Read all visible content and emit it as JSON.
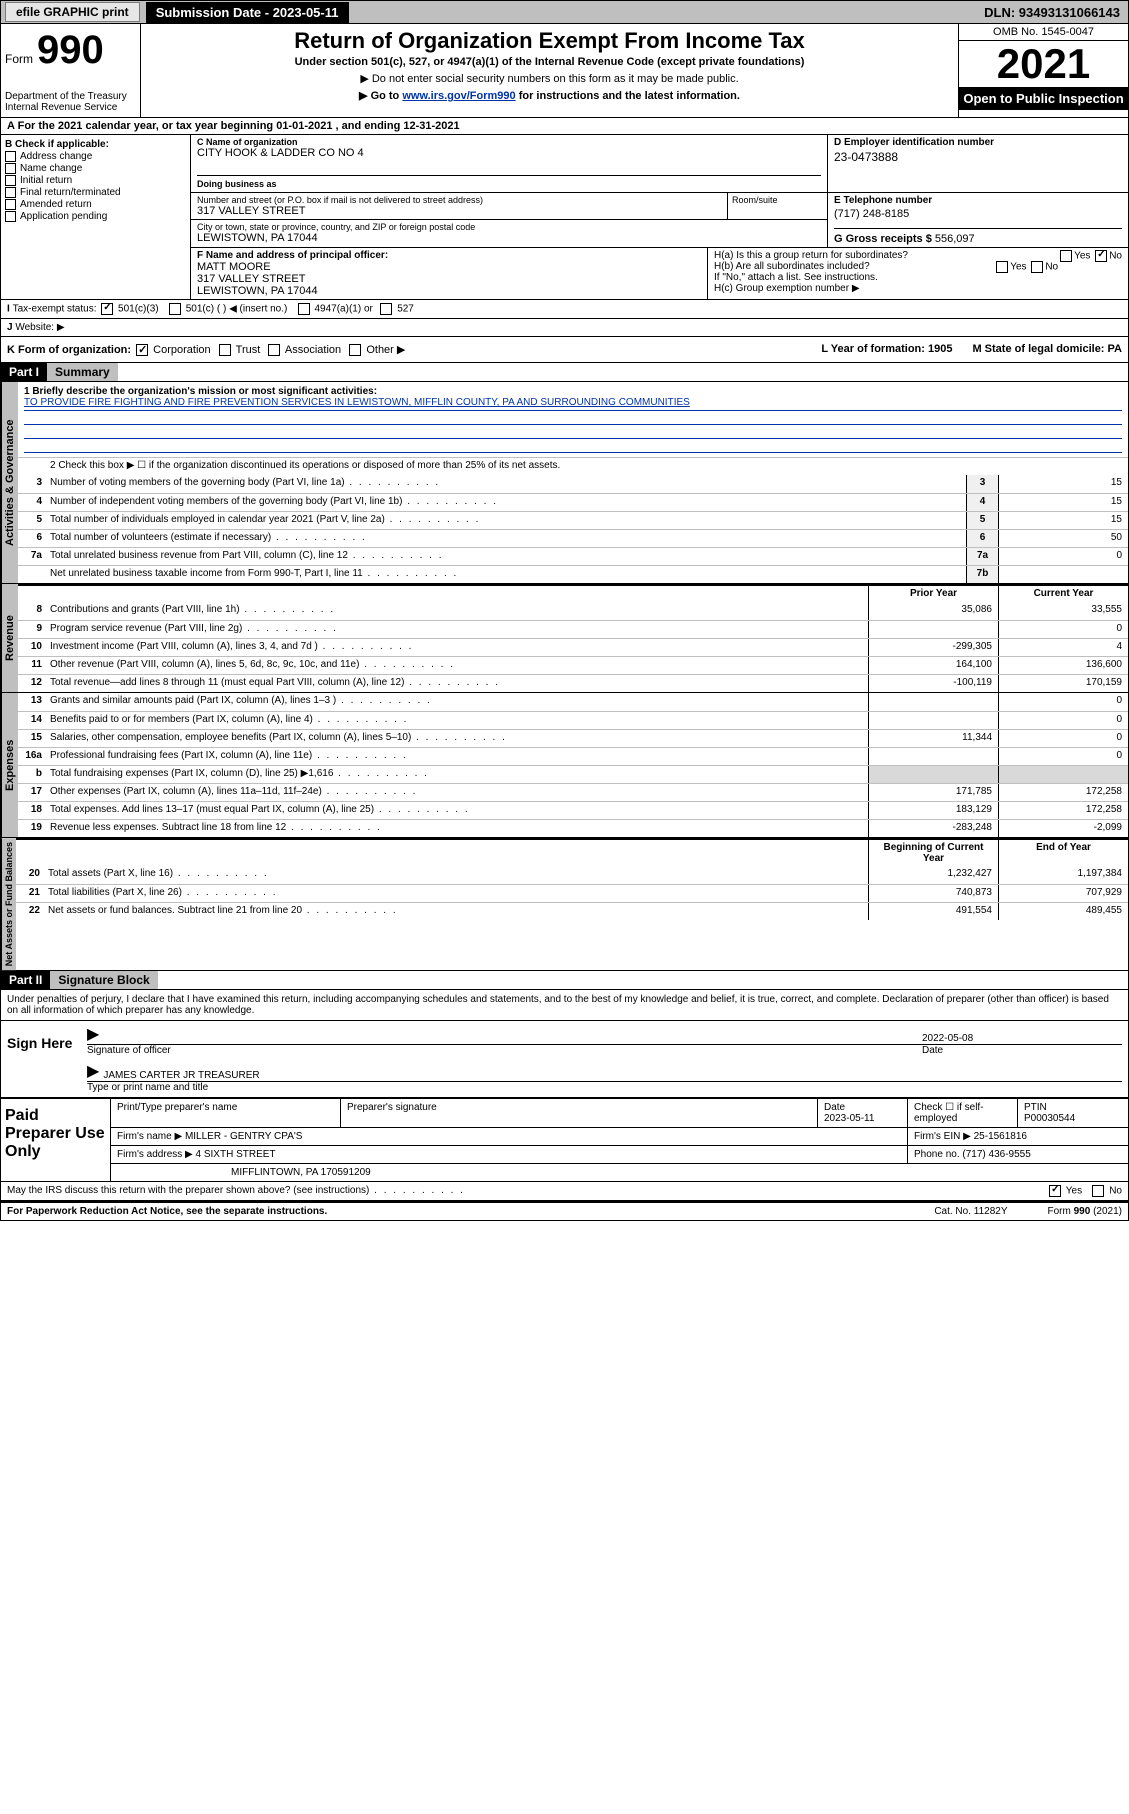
{
  "topbar": {
    "efile": "efile GRAPHIC print",
    "submission_label": "Submission Date - 2023-05-11",
    "dln": "DLN: 93493131066143"
  },
  "header": {
    "form_word": "Form",
    "form_num": "990",
    "dept": "Department of the Treasury Internal Revenue Service",
    "title": "Return of Organization Exempt From Income Tax",
    "sub1": "Under section 501(c), 527, or 4947(a)(1) of the Internal Revenue Code (except private foundations)",
    "sub2": "▶ Do not enter social security numbers on this form as it may be made public.",
    "sub3_pre": "▶ Go to ",
    "sub3_link": "www.irs.gov/Form990",
    "sub3_post": " for instructions and the latest information.",
    "omb": "OMB No. 1545-0047",
    "year": "2021",
    "open": "Open to Public Inspection"
  },
  "row_a": "For the 2021 calendar year, or tax year beginning 01-01-2021   , and ending 12-31-2021",
  "col_b": {
    "label": "B Check if applicable:",
    "items": [
      "Address change",
      "Name change",
      "Initial return",
      "Final return/terminated",
      "Amended return",
      "Application pending"
    ]
  },
  "c": {
    "label": "C Name of organization",
    "name": "CITY HOOK & LADDER CO NO 4",
    "dba_label": "Doing business as",
    "addr_label": "Number and street (or P.O. box if mail is not delivered to street address)",
    "addr": "317 VALLEY STREET",
    "room_label": "Room/suite",
    "city_label": "City or town, state or province, country, and ZIP or foreign postal code",
    "city": "LEWISTOWN, PA  17044"
  },
  "d": {
    "label": "D Employer identification number",
    "val": "23-0473888"
  },
  "e": {
    "label": "E Telephone number",
    "val": "(717) 248-8185"
  },
  "g": {
    "label": "G Gross receipts $",
    "val": "556,097"
  },
  "f": {
    "label": "F  Name and address of principal officer:",
    "name": "MATT MOORE",
    "addr1": "317 VALLEY STREET",
    "addr2": "LEWISTOWN, PA  17044"
  },
  "h": {
    "a": "H(a)  Is this a group return for subordinates?",
    "b": "H(b)  Are all subordinates included?",
    "note": "If \"No,\" attach a list. See instructions.",
    "c": "H(c)  Group exemption number ▶"
  },
  "i": {
    "label": "Tax-exempt status:",
    "opts": [
      "501(c)(3)",
      "501(c) (  ) ◀ (insert no.)",
      "4947(a)(1) or",
      "527"
    ]
  },
  "j": {
    "label": "Website: ▶"
  },
  "k": {
    "label": "K Form of organization:",
    "opts": [
      "Corporation",
      "Trust",
      "Association",
      "Other ▶"
    ],
    "l": "L Year of formation: 1905",
    "m": "M State of legal domicile: PA"
  },
  "part1": {
    "hdr": "Part I",
    "title": "Summary"
  },
  "summary": {
    "q1_label": "1  Briefly describe the organization's mission or most significant activities:",
    "q1_text": "TO PROVIDE FIRE FIGHTING AND FIRE PREVENTION SERVICES IN LEWISTOWN, MIFFLIN COUNTY, PA AND SURROUNDING COMMUNITIES",
    "q2": "2   Check this box ▶ ☐  if the organization discontinued its operations or disposed of more than 25% of its net assets.",
    "rows_gov": [
      {
        "n": "3",
        "t": "Number of voting members of the governing body (Part VI, line 1a)",
        "b": "3",
        "v": "15"
      },
      {
        "n": "4",
        "t": "Number of independent voting members of the governing body (Part VI, line 1b)",
        "b": "4",
        "v": "15"
      },
      {
        "n": "5",
        "t": "Total number of individuals employed in calendar year 2021 (Part V, line 2a)",
        "b": "5",
        "v": "15"
      },
      {
        "n": "6",
        "t": "Total number of volunteers (estimate if necessary)",
        "b": "6",
        "v": "50"
      },
      {
        "n": "7a",
        "t": "Total unrelated business revenue from Part VIII, column (C), line 12",
        "b": "7a",
        "v": "0"
      },
      {
        "n": "",
        "t": "Net unrelated business taxable income from Form 990-T, Part I, line 11",
        "b": "7b",
        "v": ""
      }
    ],
    "yr_prior": "Prior Year",
    "yr_curr": "Current Year",
    "rows_rev": [
      {
        "n": "8",
        "t": "Contributions and grants (Part VIII, line 1h)",
        "p": "35,086",
        "c": "33,555"
      },
      {
        "n": "9",
        "t": "Program service revenue (Part VIII, line 2g)",
        "p": "",
        "c": "0"
      },
      {
        "n": "10",
        "t": "Investment income (Part VIII, column (A), lines 3, 4, and 7d )",
        "p": "-299,305",
        "c": "4"
      },
      {
        "n": "11",
        "t": "Other revenue (Part VIII, column (A), lines 5, 6d, 8c, 9c, 10c, and 11e)",
        "p": "164,100",
        "c": "136,600"
      },
      {
        "n": "12",
        "t": "Total revenue—add lines 8 through 11 (must equal Part VIII, column (A), line 12)",
        "p": "-100,119",
        "c": "170,159"
      }
    ],
    "rows_exp": [
      {
        "n": "13",
        "t": "Grants and similar amounts paid (Part IX, column (A), lines 1–3 )",
        "p": "",
        "c": "0"
      },
      {
        "n": "14",
        "t": "Benefits paid to or for members (Part IX, column (A), line 4)",
        "p": "",
        "c": "0"
      },
      {
        "n": "15",
        "t": "Salaries, other compensation, employee benefits (Part IX, column (A), lines 5–10)",
        "p": "11,344",
        "c": "0"
      },
      {
        "n": "16a",
        "t": "Professional fundraising fees (Part IX, column (A), line 11e)",
        "p": "",
        "c": "0"
      },
      {
        "n": "b",
        "t": "Total fundraising expenses (Part IX, column (D), line 25) ▶1,616",
        "p": "shade",
        "c": "shade"
      },
      {
        "n": "17",
        "t": "Other expenses (Part IX, column (A), lines 11a–11d, 11f–24e)",
        "p": "171,785",
        "c": "172,258"
      },
      {
        "n": "18",
        "t": "Total expenses. Add lines 13–17 (must equal Part IX, column (A), line 25)",
        "p": "183,129",
        "c": "172,258"
      },
      {
        "n": "19",
        "t": "Revenue less expenses. Subtract line 18 from line 12",
        "p": "-283,248",
        "c": "-2,099"
      }
    ],
    "na_hdr_l": "Beginning of Current Year",
    "na_hdr_r": "End of Year",
    "rows_na": [
      {
        "n": "20",
        "t": "Total assets (Part X, line 16)",
        "p": "1,232,427",
        "c": "1,197,384"
      },
      {
        "n": "21",
        "t": "Total liabilities (Part X, line 26)",
        "p": "740,873",
        "c": "707,929"
      },
      {
        "n": "22",
        "t": "Net assets or fund balances. Subtract line 21 from line 20",
        "p": "491,554",
        "c": "489,455"
      }
    ]
  },
  "vtabs": {
    "gov": "Activities & Governance",
    "rev": "Revenue",
    "exp": "Expenses",
    "na": "Net Assets or Fund Balances"
  },
  "part2": {
    "hdr": "Part II",
    "title": "Signature Block"
  },
  "sig": {
    "decl": "Under penalties of perjury, I declare that I have examined this return, including accompanying schedules and statements, and to the best of my knowledge and belief, it is true, correct, and complete. Declaration of preparer (other than officer) is based on all information of which preparer has any knowledge.",
    "sign_here": "Sign Here",
    "sig_officer": "Signature of officer",
    "date": "2022-05-08",
    "date_lbl": "Date",
    "name": "JAMES CARTER JR  TREASURER",
    "name_lbl": "Type or print name and title"
  },
  "paid": {
    "label": "Paid Preparer Use Only",
    "h1": "Print/Type preparer's name",
    "h2": "Preparer's signature",
    "h3": "Date",
    "h4": "Check ☐ if self-employed",
    "h5": "PTIN",
    "date": "2023-05-11",
    "ptin": "P00030544",
    "firm_lbl": "Firm's name   ▶",
    "firm": "MILLER - GENTRY CPA'S",
    "ein_lbl": "Firm's EIN ▶",
    "ein": "25-1561816",
    "addr_lbl": "Firm's address ▶",
    "addr": "4 SIXTH STREET",
    "addr2": "MIFFLINTOWN, PA  170591209",
    "phone_lbl": "Phone no.",
    "phone": "(717) 436-9555"
  },
  "footer": {
    "discuss": "May the IRS discuss this return with the preparer shown above? (see instructions)",
    "yes": "Yes",
    "no": "No",
    "pra": "For Paperwork Reduction Act Notice, see the separate instructions.",
    "cat": "Cat. No. 11282Y",
    "form": "Form 990 (2021)"
  },
  "colors": {
    "topbar_bg": "#bfbfbf",
    "black": "#000000",
    "link": "#0033aa",
    "shade": "#d9d9d9"
  }
}
